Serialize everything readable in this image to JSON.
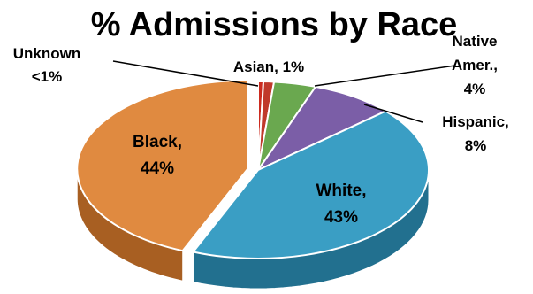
{
  "chart_data": {
    "type": "pie",
    "title": "% Admissions by Race",
    "slices": [
      {
        "name": "Unknown",
        "value": 0.5,
        "color": "#cc2b1f",
        "side": "#8e1b13",
        "label_lines": [
          "Unknown",
          "<1%"
        ]
      },
      {
        "name": "Asian",
        "value": 1,
        "color": "#c0392b",
        "side": "#8a2318",
        "label_lines": [
          "Asian, 1%"
        ]
      },
      {
        "name": "Native Amer.",
        "value": 4,
        "color": "#6aa84f",
        "side": "#3e7a2a",
        "label_lines": [
          "Native",
          "Amer.,",
          "4%"
        ]
      },
      {
        "name": "Hispanic",
        "value": 8,
        "color": "#7b5ea7",
        "side": "#523c78",
        "label_lines": [
          "Hispanic,",
          "8%"
        ]
      },
      {
        "name": "White",
        "value": 43,
        "color": "#3a9ec4",
        "side": "#22708f",
        "label_lines": [
          "White,",
          "43%"
        ]
      },
      {
        "name": "Black",
        "value": 44,
        "color": "#e08a40",
        "side": "#a85f22",
        "label_lines": [
          "Black,",
          "44%"
        ]
      }
    ]
  }
}
